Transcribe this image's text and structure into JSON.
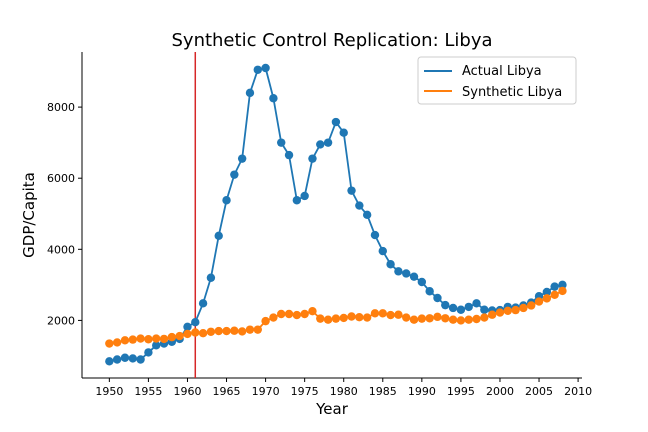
{
  "chart_data": {
    "type": "line",
    "title": "Synthetic Control Replication: Libya",
    "xlabel": "Year",
    "ylabel": "GDP/Capita",
    "xlim": [
      1946.5,
      2010.5
    ],
    "ylim": [
      380,
      9550
    ],
    "xticks": [
      1950,
      1955,
      1960,
      1965,
      1970,
      1975,
      1980,
      1985,
      1990,
      1995,
      2000,
      2005,
      2010
    ],
    "yticks": [
      2000,
      4000,
      6000,
      8000
    ],
    "grid": false,
    "legend_position": "top-right",
    "vline": {
      "x": 1961,
      "color": "#d62728"
    },
    "x": [
      1950,
      1951,
      1952,
      1953,
      1954,
      1955,
      1956,
      1957,
      1958,
      1959,
      1960,
      1961,
      1962,
      1963,
      1964,
      1965,
      1966,
      1967,
      1968,
      1969,
      1970,
      1971,
      1972,
      1973,
      1974,
      1975,
      1976,
      1977,
      1978,
      1979,
      1980,
      1981,
      1982,
      1983,
      1984,
      1985,
      1986,
      1987,
      1988,
      1989,
      1990,
      1991,
      1992,
      1993,
      1994,
      1995,
      1996,
      1997,
      1998,
      1999,
      2000,
      2001,
      2002,
      2003,
      2004,
      2005,
      2006,
      2007,
      2008
    ],
    "series": [
      {
        "name": "Actual Libya",
        "color": "#1f77b4",
        "values": [
          850,
          900,
          950,
          930,
          900,
          1100,
          1300,
          1350,
          1400,
          1480,
          1820,
          1950,
          2480,
          3200,
          4380,
          5380,
          6100,
          6550,
          8400,
          9050,
          9100,
          8250,
          7000,
          6650,
          5380,
          5500,
          6550,
          6950,
          7000,
          7580,
          7280,
          5650,
          5230,
          4970,
          4400,
          3950,
          3580,
          3380,
          3320,
          3230,
          3080,
          2820,
          2630,
          2430,
          2350,
          2300,
          2380,
          2480,
          2300,
          2280,
          2290,
          2380,
          2360,
          2420,
          2500,
          2680,
          2800,
          2950,
          3000
        ]
      },
      {
        "name": "Synthetic Libya",
        "color": "#ff7f0e",
        "values": [
          1350,
          1380,
          1440,
          1460,
          1490,
          1470,
          1490,
          1480,
          1530,
          1560,
          1620,
          1660,
          1640,
          1680,
          1700,
          1700,
          1710,
          1690,
          1740,
          1740,
          1980,
          2080,
          2180,
          2180,
          2150,
          2180,
          2260,
          2050,
          2020,
          2050,
          2070,
          2110,
          2090,
          2080,
          2200,
          2200,
          2150,
          2160,
          2080,
          2020,
          2050,
          2060,
          2100,
          2060,
          2020,
          2000,
          2020,
          2040,
          2080,
          2160,
          2220,
          2270,
          2290,
          2350,
          2420,
          2530,
          2620,
          2720,
          2830
        ]
      }
    ]
  }
}
